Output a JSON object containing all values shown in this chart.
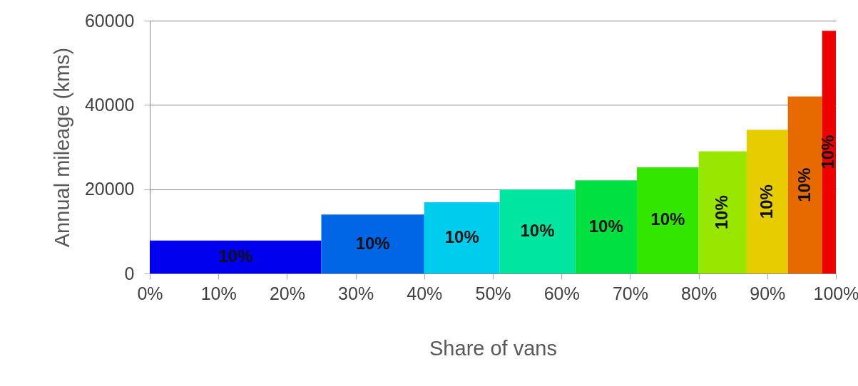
{
  "chart_data": {
    "type": "histogram",
    "xlabel": "Share of vans",
    "ylabel": "Annual mileage (kms)",
    "bins": [
      0,
      25,
      40,
      51,
      62,
      71,
      80,
      87,
      93,
      98,
      100
    ],
    "values": [
      7800,
      14000,
      16900,
      19900,
      22100,
      25200,
      29000,
      34100,
      42000,
      57600
    ],
    "colors": [
      "#0000ee",
      "#0066e6",
      "#00ccee",
      "#00e6a0",
      "#00e040",
      "#33e600",
      "#99e600",
      "#e6cc00",
      "#e66a00",
      "#ee0000"
    ],
    "annotations": [
      "10%",
      "10%",
      "10%",
      "10%",
      "10%",
      "10%",
      "10%",
      "10%",
      "10%",
      "10%"
    ],
    "xlim": [
      0,
      100
    ],
    "xticks": [
      {
        "value": 0,
        "label": "0%"
      },
      {
        "value": 10,
        "label": "10%"
      },
      {
        "value": 20,
        "label": "20%"
      },
      {
        "value": 30,
        "label": "30%"
      },
      {
        "value": 40,
        "label": "40%"
      },
      {
        "value": 50,
        "label": "50%"
      },
      {
        "value": 60,
        "label": "60%"
      },
      {
        "value": 70,
        "label": "70%"
      },
      {
        "value": 80,
        "label": "80%"
      },
      {
        "value": 90,
        "label": "90%"
      },
      {
        "value": 100,
        "label": "100%"
      }
    ],
    "ylim": [
      0,
      60000
    ],
    "yticks": [
      0,
      20000,
      40000,
      60000
    ],
    "grid": "y"
  }
}
